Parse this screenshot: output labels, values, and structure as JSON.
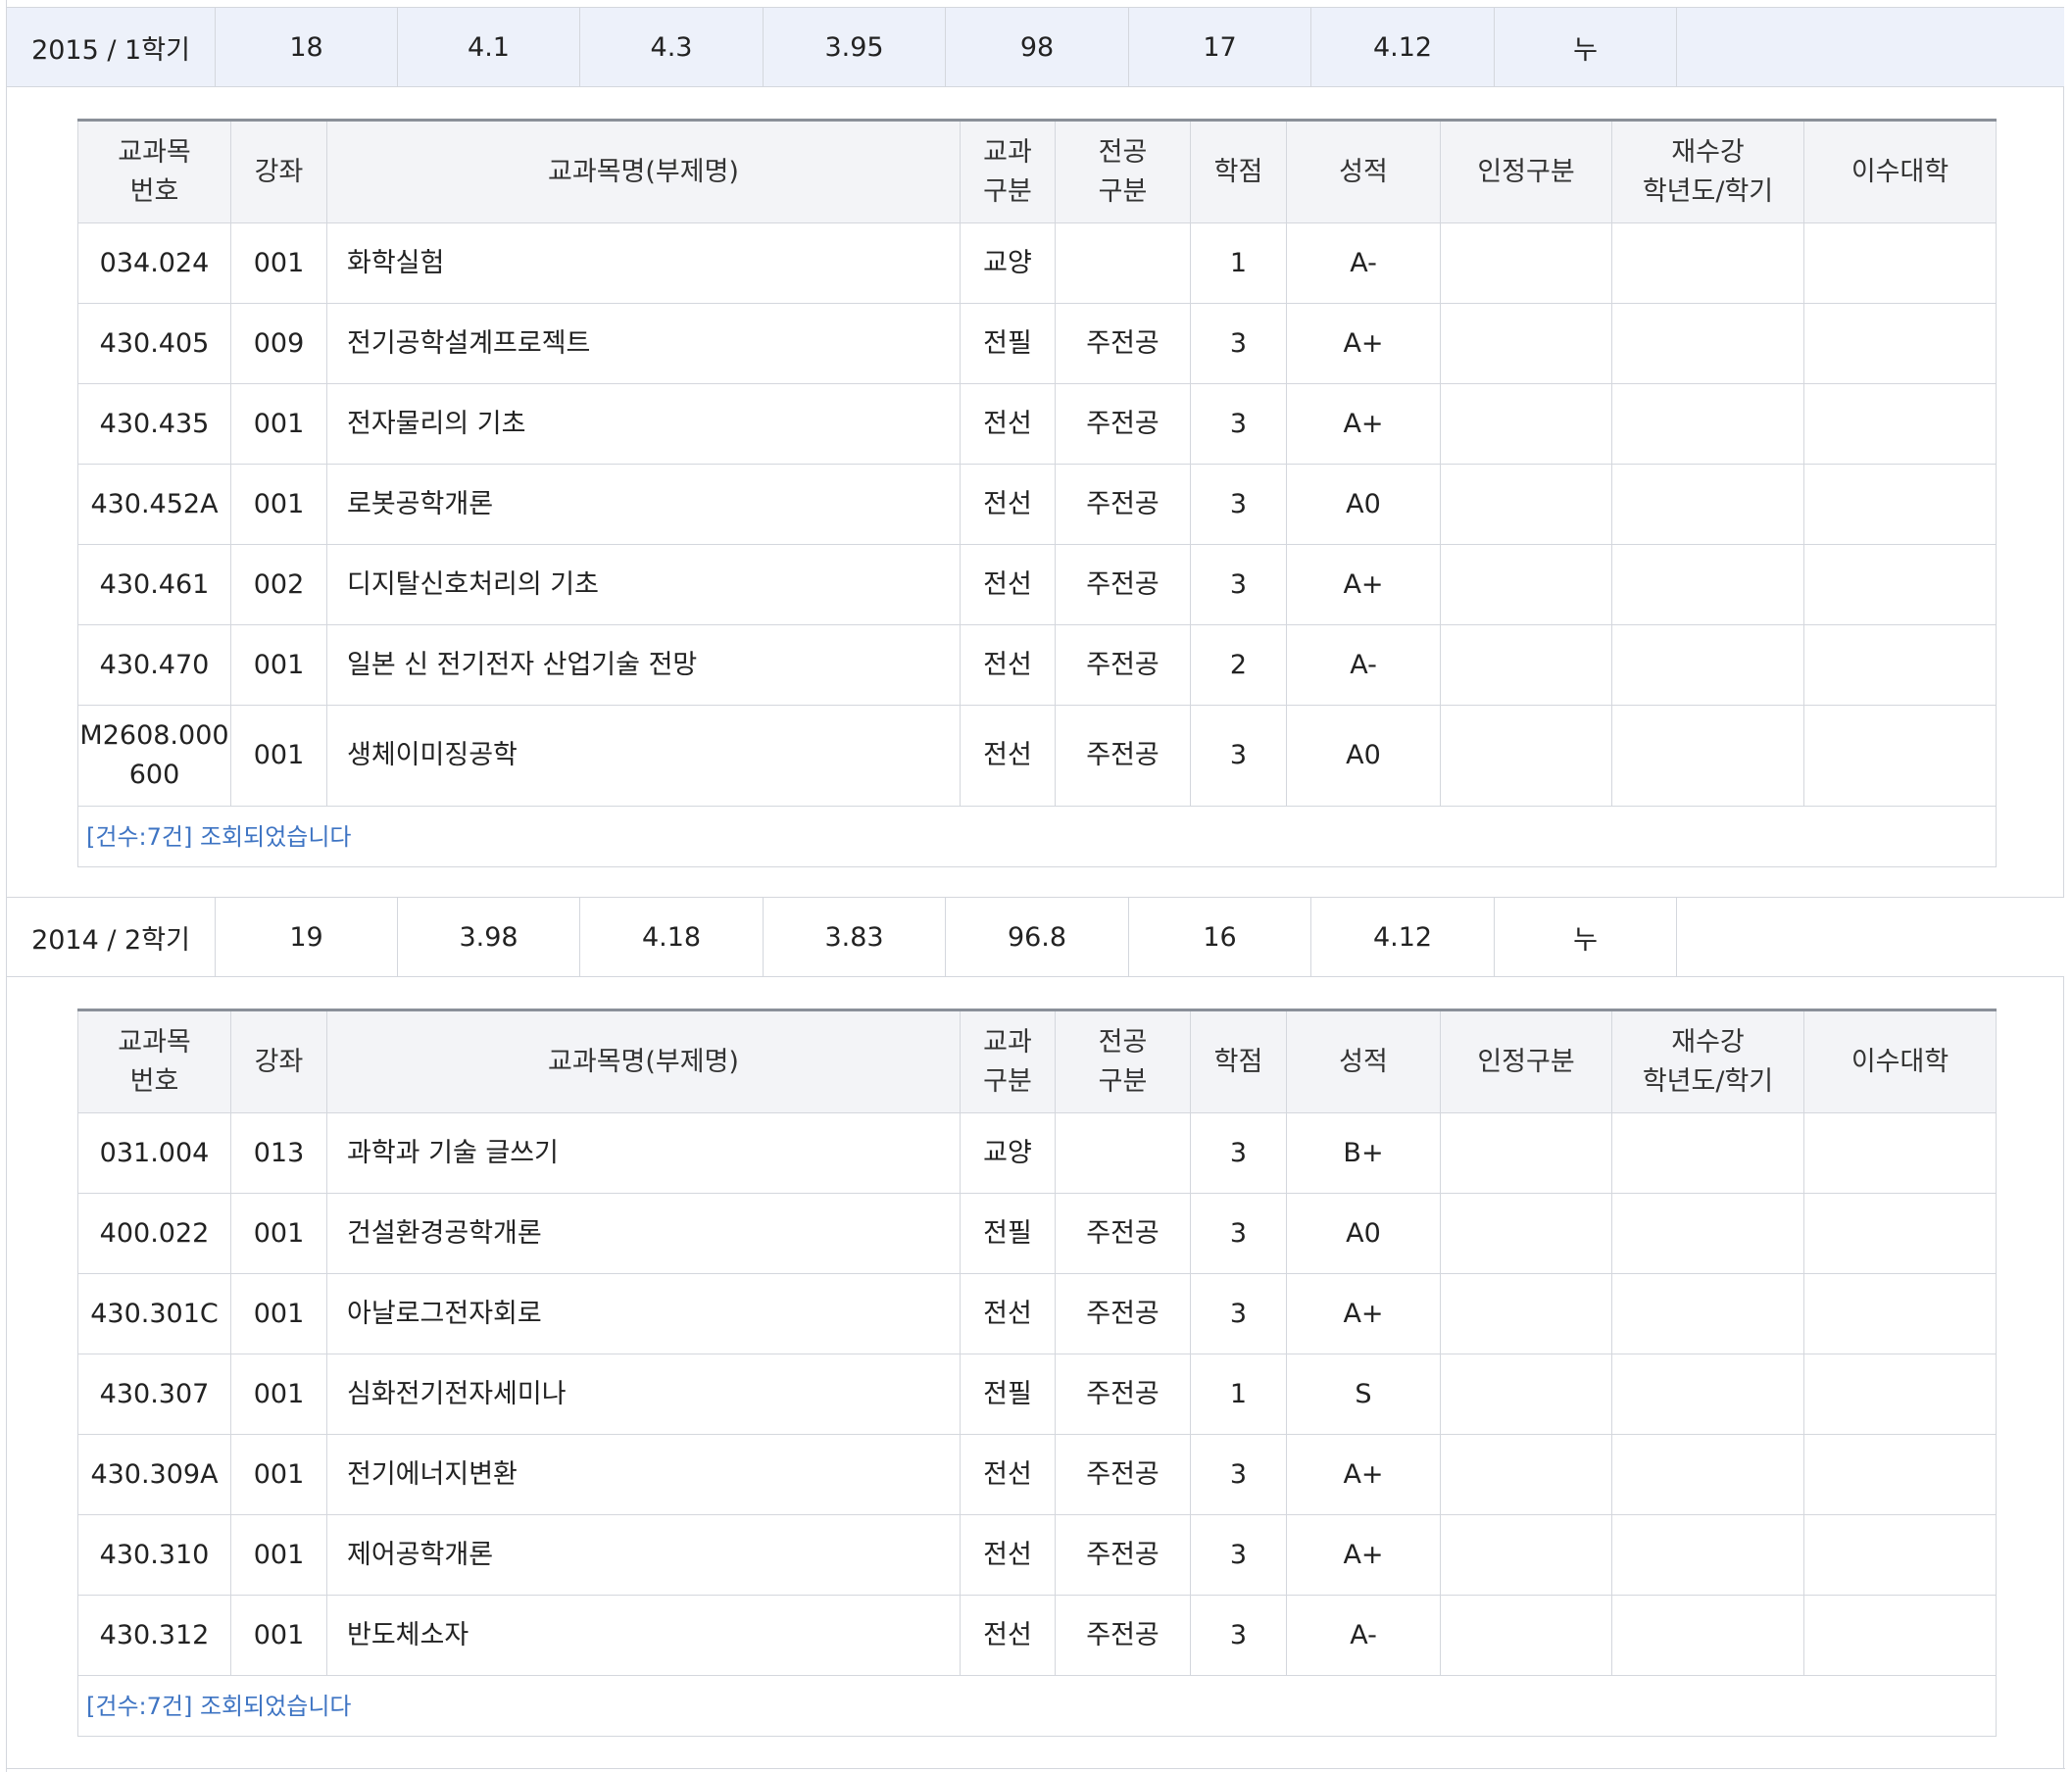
{
  "semesters": [
    {
      "summary": [
        "2015 / 1학기",
        "18",
        "4.1",
        "4.3",
        "3.95",
        "98",
        "17",
        "4.12",
        "누",
        ""
      ],
      "headers": [
        "교과목\n번호",
        "강좌",
        "교과목명(부제명)",
        "교과\n구분",
        "전공\n구분",
        "학점",
        "성적",
        "인정구분",
        "재수강\n학년도/학기",
        "이수대학"
      ],
      "rows": [
        [
          "034.024",
          "001",
          "화학실험",
          "교양",
          "",
          "1",
          "A-",
          "",
          "",
          ""
        ],
        [
          "430.405",
          "009",
          "전기공학설계프로젝트",
          "전필",
          "주전공",
          "3",
          "A+",
          "",
          "",
          ""
        ],
        [
          "430.435",
          "001",
          "전자물리의 기초",
          "전선",
          "주전공",
          "3",
          "A+",
          "",
          "",
          ""
        ],
        [
          "430.452A",
          "001",
          "로봇공학개론",
          "전선",
          "주전공",
          "3",
          "A0",
          "",
          "",
          ""
        ],
        [
          "430.461",
          "002",
          "디지탈신호처리의 기초",
          "전선",
          "주전공",
          "3",
          "A+",
          "",
          "",
          ""
        ],
        [
          "430.470",
          "001",
          "일본 신 전기전자 산업기술 전망",
          "전선",
          "주전공",
          "2",
          "A-",
          "",
          "",
          ""
        ],
        [
          "M2608.000\n600",
          "001",
          "생체이미징공학",
          "전선",
          "주전공",
          "3",
          "A0",
          "",
          "",
          ""
        ]
      ],
      "footer": "[건수:7건] 조회되었습니다"
    },
    {
      "summary": [
        "2014 / 2학기",
        "19",
        "3.98",
        "4.18",
        "3.83",
        "96.8",
        "16",
        "4.12",
        "누",
        ""
      ],
      "headers": [
        "교과목\n번호",
        "강좌",
        "교과목명(부제명)",
        "교과\n구분",
        "전공\n구분",
        "학점",
        "성적",
        "인정구분",
        "재수강\n학년도/학기",
        "이수대학"
      ],
      "rows": [
        [
          "031.004",
          "013",
          "과학과 기술 글쓰기",
          "교양",
          "",
          "3",
          "B+",
          "",
          "",
          ""
        ],
        [
          "400.022",
          "001",
          "건설환경공학개론",
          "전필",
          "주전공",
          "3",
          "A0",
          "",
          "",
          ""
        ],
        [
          "430.301C",
          "001",
          "아날로그전자회로",
          "전선",
          "주전공",
          "3",
          "A+",
          "",
          "",
          ""
        ],
        [
          "430.307",
          "001",
          "심화전기전자세미나",
          "전필",
          "주전공",
          "1",
          "S",
          "",
          "",
          ""
        ],
        [
          "430.309A",
          "001",
          "전기에너지변환",
          "전선",
          "주전공",
          "3",
          "A+",
          "",
          "",
          ""
        ],
        [
          "430.310",
          "001",
          "제어공학개론",
          "전선",
          "주전공",
          "3",
          "A+",
          "",
          "",
          ""
        ],
        [
          "430.312",
          "001",
          "반도체소자",
          "전선",
          "주전공",
          "3",
          "A-",
          "",
          "",
          ""
        ]
      ],
      "footer": "[건수:7건] 조회되었습니다"
    }
  ],
  "colors": {
    "active_row_bg": "#edf1fa",
    "header_bg": "#f3f4f7",
    "border": "#d4d7dd",
    "header_top_rule": "#8a9099",
    "footer_text": "#3e74c3"
  }
}
